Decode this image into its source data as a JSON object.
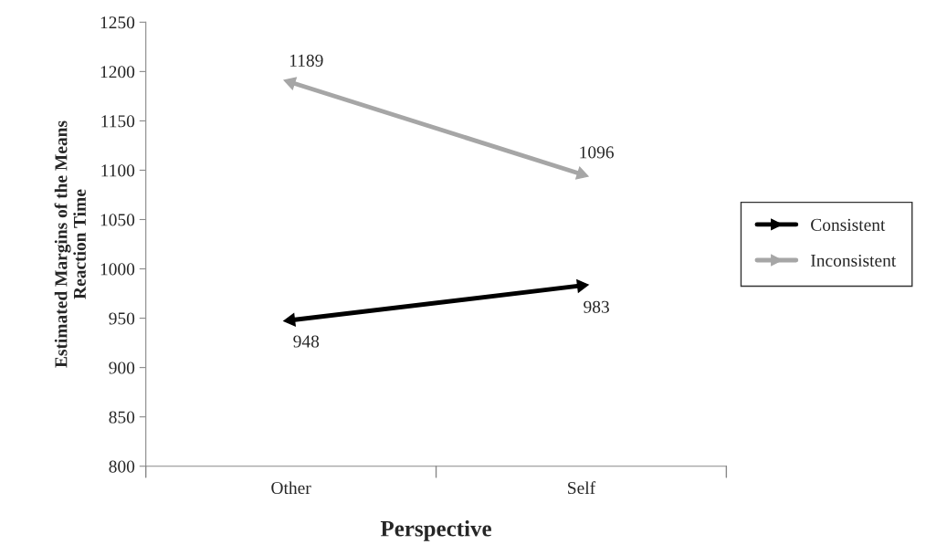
{
  "chart_data": {
    "type": "line",
    "xlabel": "Perspective",
    "ylabel": "Estimated Margins of the Means\nReaction Time",
    "categories": [
      "Other",
      "Self"
    ],
    "series": [
      {
        "name": "Consistent",
        "color": "#000000",
        "values": [
          948,
          983
        ]
      },
      {
        "name": "Inconsistent",
        "color": "#a6a6a6",
        "values": [
          1189,
          1096
        ]
      }
    ],
    "ylim": [
      800,
      1250
    ],
    "yticks": [
      800,
      850,
      900,
      950,
      1000,
      1050,
      1100,
      1150,
      1200,
      1250
    ],
    "data_labels": true,
    "grid": false,
    "legend": "right",
    "marker": "triangle",
    "line_style": "solid"
  }
}
